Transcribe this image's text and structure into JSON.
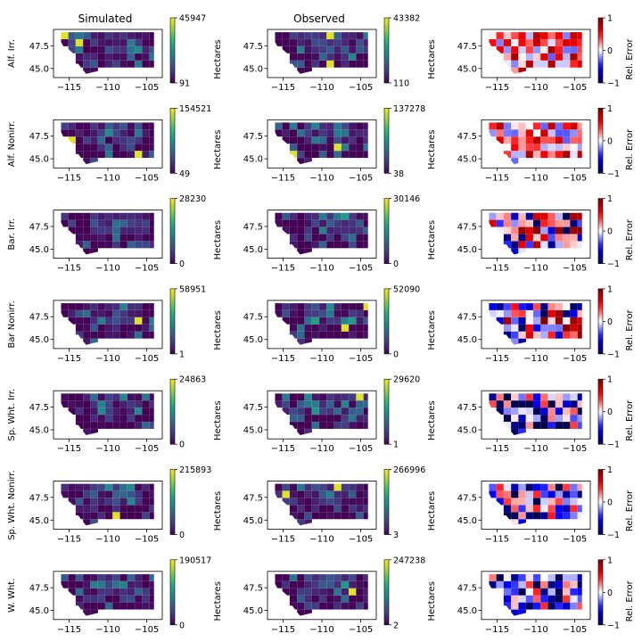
{
  "figure": {
    "column_titles": [
      "Simulated",
      "Observed",
      ""
    ],
    "colorbar_label_hectares": "Hectares",
    "colorbar_label_error": "Rel. Error"
  },
  "colors": {
    "viridis_low": "#440154",
    "viridis_mid": "#21918c",
    "viridis_high": "#fde725",
    "seismic_low": "#00004c",
    "seismic_mid": "#ffffff",
    "seismic_high": "#7f0000"
  },
  "chart_data": [
    {
      "type": "heatmap",
      "row": "Alf. Irr.",
      "panel": "Simulated",
      "colorbar": {
        "label": "Hectares",
        "min": 91,
        "max": 45947
      },
      "xticks": [
        -115,
        -110,
        -105
      ],
      "yticks": [
        45.0,
        47.5
      ]
    },
    {
      "type": "heatmap",
      "row": "Alf. Irr.",
      "panel": "Observed",
      "colorbar": {
        "label": "Hectares",
        "min": 110,
        "max": 43382
      },
      "xticks": [
        -115,
        -110,
        -105
      ],
      "yticks": [
        45.0,
        47.5
      ]
    },
    {
      "type": "heatmap",
      "row": "Alf. Irr.",
      "panel": "Error",
      "colorbar": {
        "label": "Rel. Error",
        "min": -1,
        "max": 1,
        "ticks": [
          -1,
          0,
          1
        ]
      },
      "xticks": [
        -115,
        -110,
        -105
      ],
      "yticks": [
        45.0,
        47.5
      ]
    },
    {
      "type": "heatmap",
      "row": "Alf. Nonirr.",
      "panel": "Simulated",
      "colorbar": {
        "label": "Hectares",
        "min": 49,
        "max": 154521
      },
      "xticks": [
        -115,
        -110,
        -105
      ],
      "yticks": [
        45.0,
        47.5
      ]
    },
    {
      "type": "heatmap",
      "row": "Alf. Nonirr.",
      "panel": "Observed",
      "colorbar": {
        "label": "Hectares",
        "min": 38,
        "max": 137278
      },
      "xticks": [
        -115,
        -110,
        -105
      ],
      "yticks": [
        45.0,
        47.5
      ]
    },
    {
      "type": "heatmap",
      "row": "Alf. Nonirr.",
      "panel": "Error",
      "colorbar": {
        "label": "Rel. Error",
        "min": -1,
        "max": 1,
        "ticks": [
          -1,
          0,
          1
        ]
      },
      "xticks": [
        -115,
        -110,
        -105
      ],
      "yticks": [
        45.0,
        47.5
      ]
    },
    {
      "type": "heatmap",
      "row": "Bar. Irr.",
      "panel": "Simulated",
      "colorbar": {
        "label": "Hectares",
        "min": 0,
        "max": 28230
      },
      "xticks": [
        -115,
        -110,
        -105
      ],
      "yticks": [
        45.0,
        47.5
      ]
    },
    {
      "type": "heatmap",
      "row": "Bar. Irr.",
      "panel": "Observed",
      "colorbar": {
        "label": "Hectares",
        "min": 0,
        "max": 30146
      },
      "xticks": [
        -115,
        -110,
        -105
      ],
      "yticks": [
        45.0,
        47.5
      ]
    },
    {
      "type": "heatmap",
      "row": "Bar. Irr.",
      "panel": "Error",
      "colorbar": {
        "label": "Rel. Error",
        "min": -1,
        "max": 1,
        "ticks": [
          -1,
          0,
          1
        ]
      },
      "xticks": [
        -115,
        -110,
        -105
      ],
      "yticks": [
        45.0,
        47.5
      ]
    },
    {
      "type": "heatmap",
      "row": "Bar Nonirr.",
      "panel": "Simulated",
      "colorbar": {
        "label": "Hectares",
        "min": 1,
        "max": 58951
      },
      "xticks": [
        -115,
        -110,
        -105
      ],
      "yticks": [
        45.0,
        47.5
      ]
    },
    {
      "type": "heatmap",
      "row": "Bar Nonirr.",
      "panel": "Observed",
      "colorbar": {
        "label": "Hectares",
        "min": 0,
        "max": 52090
      },
      "xticks": [
        -115,
        -110,
        -105
      ],
      "yticks": [
        45.0,
        47.5
      ]
    },
    {
      "type": "heatmap",
      "row": "Bar Nonirr.",
      "panel": "Error",
      "colorbar": {
        "label": "Rel. Error",
        "min": -1,
        "max": 1,
        "ticks": [
          -1,
          0,
          1
        ]
      },
      "xticks": [
        -115,
        -110,
        -105
      ],
      "yticks": [
        45.0,
        47.5
      ]
    },
    {
      "type": "heatmap",
      "row": "Sp. Wht. Irr.",
      "panel": "Simulated",
      "colorbar": {
        "label": "Hectares",
        "min": 0,
        "max": 24863
      },
      "xticks": [
        -115,
        -110,
        -105
      ],
      "yticks": [
        45.0,
        47.5
      ]
    },
    {
      "type": "heatmap",
      "row": "Sp. Wht. Irr.",
      "panel": "Observed",
      "colorbar": {
        "label": "Hectares",
        "min": 1,
        "max": 29620
      },
      "xticks": [
        -115,
        -110,
        -105
      ],
      "yticks": [
        45.0,
        47.5
      ]
    },
    {
      "type": "heatmap",
      "row": "Sp. Wht. Irr.",
      "panel": "Error",
      "colorbar": {
        "label": "Rel. Error",
        "min": -1,
        "max": 1,
        "ticks": [
          -1,
          0,
          1
        ]
      },
      "xticks": [
        -115,
        -110,
        -105
      ],
      "yticks": [
        45.0,
        47.5
      ]
    },
    {
      "type": "heatmap",
      "row": "Sp. Wht. Nonirr.",
      "panel": "Simulated",
      "colorbar": {
        "label": "Hectares",
        "min": 0,
        "max": 215893
      },
      "xticks": [
        -115,
        -110,
        -105
      ],
      "yticks": [
        45.0,
        47.5
      ]
    },
    {
      "type": "heatmap",
      "row": "Sp. Wht. Nonirr.",
      "panel": "Observed",
      "colorbar": {
        "label": "Hectares",
        "min": 3,
        "max": 266996
      },
      "xticks": [
        -115,
        -110,
        -105
      ],
      "yticks": [
        45.0,
        47.5
      ]
    },
    {
      "type": "heatmap",
      "row": "Sp. Wht. Nonirr.",
      "panel": "Error",
      "colorbar": {
        "label": "Rel. Error",
        "min": -1,
        "max": 1,
        "ticks": [
          -1,
          0,
          1
        ]
      },
      "xticks": [
        -115,
        -110,
        -105
      ],
      "yticks": [
        45.0,
        47.5
      ]
    },
    {
      "type": "heatmap",
      "row": "W. Wht.",
      "panel": "Simulated",
      "colorbar": {
        "label": "Hectares",
        "min": 0,
        "max": 190517
      },
      "xticks": [
        -115,
        -110,
        -105
      ],
      "yticks": [
        45.0,
        47.5
      ]
    },
    {
      "type": "heatmap",
      "row": "W. Wht.",
      "panel": "Observed",
      "colorbar": {
        "label": "Hectares",
        "min": 2,
        "max": 247238
      },
      "xticks": [
        -115,
        -110,
        -105
      ],
      "yticks": [
        45.0,
        47.5
      ]
    },
    {
      "type": "heatmap",
      "row": "W. Wht.",
      "panel": "Error",
      "colorbar": {
        "label": "Rel. Error",
        "min": -1,
        "max": 1,
        "ticks": [
          -1,
          0,
          1
        ]
      },
      "xticks": [
        -115,
        -110,
        -105
      ],
      "yticks": [
        45.0,
        47.5
      ]
    }
  ]
}
